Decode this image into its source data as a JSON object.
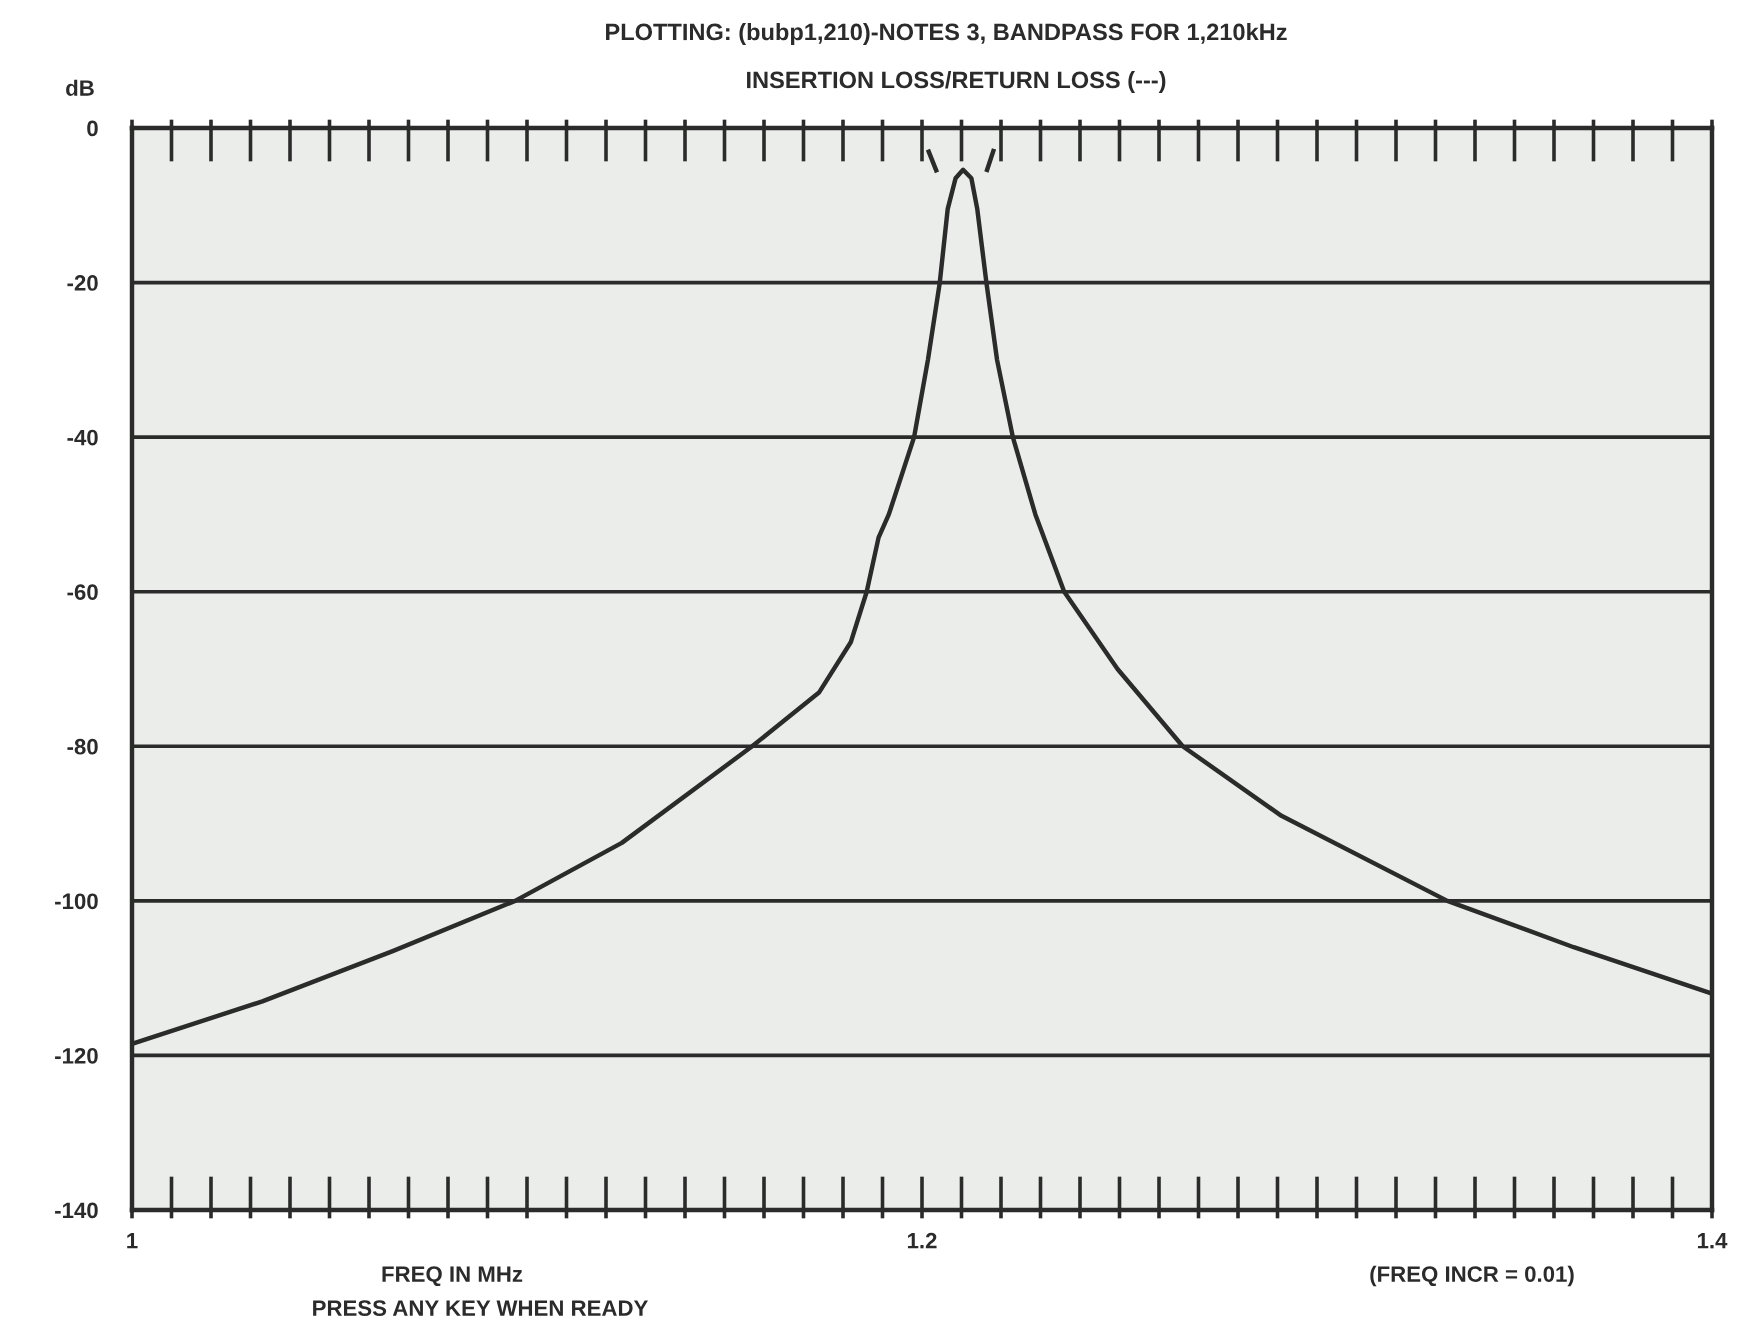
{
  "chart_data": {
    "type": "line",
    "title": "PLOTTING: (bubp1,210)-NOTES 3, BANDPASS FOR 1,210kHz",
    "subtitle": "INSERTION LOSS/RETURN LOSS (---)",
    "xlabel": "FREQ IN MHz",
    "ylabel": "dB",
    "annotations": [
      "PRESS ANY KEY WHEN READY",
      "(FREQ INCR = 0.01)"
    ],
    "series": [
      {
        "color": "#2b2b2b",
        "line_style": "solid",
        "x": [
          1.0,
          1.033,
          1.066,
          1.097,
          1.124,
          1.157,
          1.174,
          1.182,
          1.186,
          1.189,
          1.1916,
          1.198,
          1.2015,
          1.2045,
          1.2065,
          1.2085,
          1.2104,
          1.2125,
          1.214,
          1.2163,
          1.219,
          1.223,
          1.2287,
          1.236,
          1.2495,
          1.266,
          1.291,
          1.333,
          1.365,
          1.4
        ],
        "values": [
          -118.5,
          -113,
          -106.5,
          -100,
          -92.5,
          -80,
          -73,
          -66.5,
          -60,
          -53,
          -50,
          -40,
          -30,
          -20,
          -10.5,
          -6.5,
          -5.4,
          -6.5,
          -10.5,
          -20,
          -30,
          -40,
          -50,
          -60,
          -70,
          -80,
          -89,
          -100,
          -106,
          -112
        ]
      },
      {
        "color": "#2b2b2b",
        "line_style": "dashed",
        "x": [
          1.2015,
          1.204,
          1.2104,
          1.2163,
          1.2183
        ],
        "values": [
          -2.8,
          -6,
          null,
          -5.7,
          -2.6
        ]
      }
    ],
    "xlim": [
      1,
      1.4
    ],
    "xticks": [
      1,
      {
        "value": 1.01,
        "label": null
      },
      {
        "value": 1.02,
        "label": null
      },
      {
        "value": 1.03,
        "label": null
      },
      {
        "value": 1.04,
        "label": null
      },
      {
        "value": 1.05,
        "label": null
      },
      {
        "value": 1.06,
        "label": null
      },
      {
        "value": 1.07,
        "label": null
      },
      {
        "value": 1.08,
        "label": null
      },
      {
        "value": 1.09,
        "label": null
      },
      {
        "value": 1.1,
        "label": null
      },
      {
        "value": 1.11,
        "label": null
      },
      {
        "value": 1.12,
        "label": null
      },
      {
        "value": 1.13,
        "label": null
      },
      {
        "value": 1.14,
        "label": null
      },
      {
        "value": 1.15,
        "label": null
      },
      {
        "value": 1.16,
        "label": null
      },
      {
        "value": 1.17,
        "label": null
      },
      {
        "value": 1.18,
        "label": null
      },
      {
        "value": 1.19,
        "label": null
      },
      1.2,
      {
        "value": 1.21,
        "label": null
      },
      {
        "value": 1.22,
        "label": null
      },
      {
        "value": 1.23,
        "label": null
      },
      {
        "value": 1.24,
        "label": null
      },
      {
        "value": 1.25,
        "label": null
      },
      {
        "value": 1.26,
        "label": null
      },
      {
        "value": 1.27,
        "label": null
      },
      {
        "value": 1.28,
        "label": null
      },
      {
        "value": 1.29,
        "label": null
      },
      {
        "value": 1.3,
        "label": null
      },
      {
        "value": 1.31,
        "label": null
      },
      {
        "value": 1.32,
        "label": null
      },
      {
        "value": 1.33,
        "label": null
      },
      {
        "value": 1.34,
        "label": null
      },
      {
        "value": 1.35,
        "label": null
      },
      {
        "value": 1.36,
        "label": null
      },
      {
        "value": 1.37,
        "label": null
      },
      {
        "value": 1.38,
        "label": null
      },
      {
        "value": 1.39,
        "label": null
      },
      1.4
    ],
    "ylim": [
      -140,
      0
    ],
    "yticks": [
      0,
      -20,
      -40,
      -60,
      -80,
      -100,
      -120,
      -140
    ],
    "grid": "y",
    "marker": "none"
  }
}
